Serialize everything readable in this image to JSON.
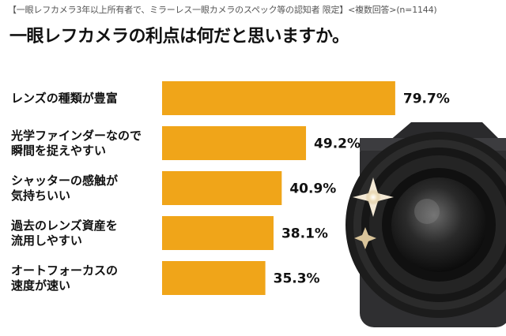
{
  "chart_data": {
    "type": "bar",
    "orientation": "horizontal",
    "subtitle": "【一眼レフカメラ3年以上所有者で、ミラーレス一眼カメラのスペック等の認知者 限定】<複数回答>(n=1144)",
    "title": "一眼レフカメラの利点は何だと思いますか。",
    "categories": [
      [
        "レンズの種類が豊富"
      ],
      [
        "光学ファインダーなので",
        "瞬間を捉えやすい"
      ],
      [
        "シャッターの感触が",
        "気持ちいい"
      ],
      [
        "過去のレンズ資産を",
        "流用しやすい"
      ],
      [
        "オートフォーカスの",
        "速度が速い"
      ]
    ],
    "values": [
      79.7,
      49.2,
      40.9,
      38.1,
      35.3
    ],
    "value_labels": [
      "79.7%",
      "49.2%",
      "40.9%",
      "38.1%",
      "35.3%"
    ],
    "bar_color": "#f0a519",
    "xlim": [
      0,
      100
    ],
    "grid": false,
    "legend": "none"
  }
}
